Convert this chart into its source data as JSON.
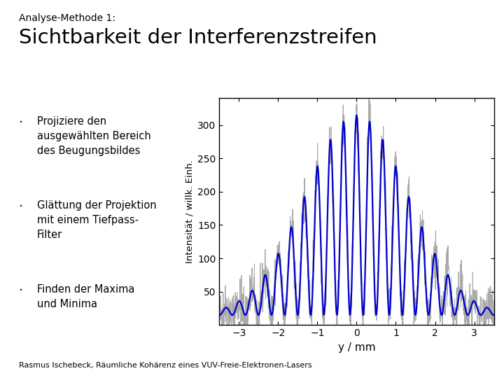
{
  "title_small": "Analyse-Methode 1:",
  "title_large": "Sichtbarkeit der Interferenzstreifen",
  "bullet_points": [
    "Projiziere den\nausgewählten Bereich\ndes Beugungsbildes",
    "Glättung der Projektion\nmit einem Tiefpass-\nFilter",
    "Finden der Maxima\nund Minima"
  ],
  "xlabel": "y / mm",
  "ylabel": "Intensität / willk. Einh.",
  "xlim": [
    -3.5,
    3.5
  ],
  "ylim": [
    0,
    340
  ],
  "yticks": [
    50,
    100,
    150,
    200,
    250,
    300
  ],
  "xticks": [
    -3,
    -2,
    -1,
    0,
    1,
    2,
    3
  ],
  "gray_color": "#aaaaaa",
  "blue_color": "#0000cc",
  "background_color": "#ffffff",
  "footer_text": "Rasmus Ischebeck, Räumliche Kohärenz eines VUV-Freie-Elektronen-Lasers",
  "noise_seed": 42,
  "sigma_envelope": 1.3,
  "fringe_freq": 3.0,
  "x_start": -3.5,
  "x_end": 3.5,
  "n_points_gray": 1400,
  "n_points_blue": 700,
  "amplitude": 300,
  "baseline": 15,
  "noise_amp": 18
}
